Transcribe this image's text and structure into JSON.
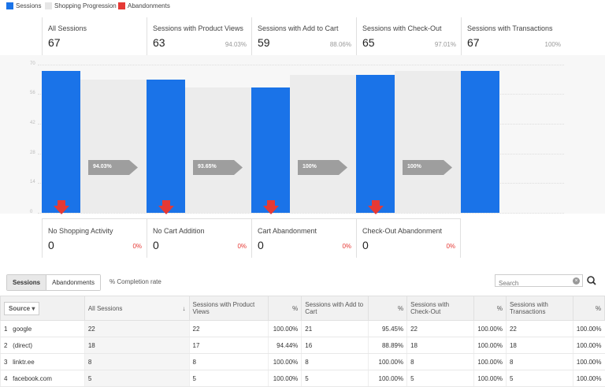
{
  "legend": [
    {
      "label": "Sessions",
      "color": "#1a73e8"
    },
    {
      "label": "Shopping Progression",
      "color": "#e6e6e6"
    },
    {
      "label": "Abandonments",
      "color": "#e53935"
    }
  ],
  "funnel": {
    "y_ticks": [
      "70",
      "56",
      "42",
      "28",
      "14",
      "0"
    ],
    "stages": [
      {
        "title": "All Sessions",
        "value": "67",
        "pct": ""
      },
      {
        "title": "Sessions with Product Views",
        "value": "63",
        "pct": "94.03%"
      },
      {
        "title": "Sessions with Add to Cart",
        "value": "59",
        "pct": "88.06%"
      },
      {
        "title": "Sessions with Check-Out",
        "value": "65",
        "pct": "97.01%"
      },
      {
        "title": "Sessions with Transactions",
        "value": "67",
        "pct": "100%"
      }
    ],
    "progressions": [
      "94.03%",
      "93.65%",
      "100%",
      "100%"
    ],
    "abandonments": [
      {
        "title": "No Shopping Activity",
        "value": "0",
        "pct": "0%"
      },
      {
        "title": "No Cart Addition",
        "value": "0",
        "pct": "0%"
      },
      {
        "title": "Cart Abandonment",
        "value": "0",
        "pct": "0%"
      },
      {
        "title": "Check-Out Abandonment",
        "value": "0",
        "pct": "0%"
      }
    ]
  },
  "chart_data": {
    "type": "bar",
    "categories": [
      "All Sessions",
      "Sessions with Product Views",
      "Sessions with Add to Cart",
      "Sessions with Check-Out",
      "Sessions with Transactions"
    ],
    "values": [
      67,
      63,
      59,
      65,
      67
    ],
    "ylim": [
      0,
      70
    ]
  },
  "toolbar": {
    "tabs": [
      "Sessions",
      "Abandonments"
    ],
    "completion_label": "% Completion rate",
    "search_placeholder": "Search"
  },
  "table": {
    "headers": [
      "Source",
      "All Sessions",
      "Sessions with Product Views",
      "%",
      "Sessions with Add to Cart",
      "%",
      "Sessions with Check-Out",
      "%",
      "Sessions with Transactions",
      "%"
    ],
    "rows": [
      [
        "1",
        "google",
        "22",
        "22",
        "100.00%",
        "21",
        "95.45%",
        "22",
        "100.00%",
        "22",
        "100.00%"
      ],
      [
        "2",
        "(direct)",
        "18",
        "17",
        "94.44%",
        "16",
        "88.89%",
        "18",
        "100.00%",
        "18",
        "100.00%"
      ],
      [
        "3",
        "linktr.ee",
        "8",
        "8",
        "100.00%",
        "8",
        "100.00%",
        "8",
        "100.00%",
        "8",
        "100.00%"
      ],
      [
        "4",
        "facebook.com",
        "5",
        "5",
        "100.00%",
        "5",
        "100.00%",
        "5",
        "100.00%",
        "5",
        "100.00%"
      ]
    ]
  }
}
